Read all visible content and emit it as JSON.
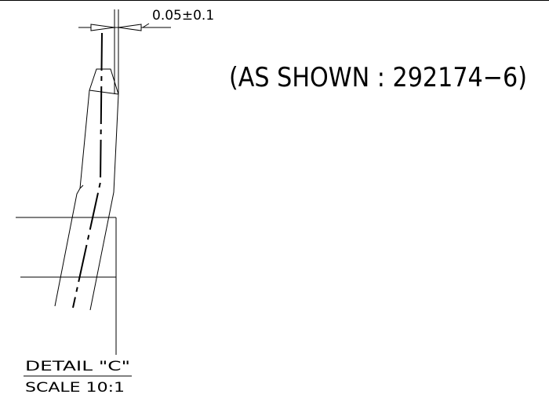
{
  "drawing": {
    "tolerance_label": "0.05±0.1",
    "part_note": "(AS SHOWN : 292174−6)",
    "detail_label": "DETAIL \"C\"",
    "scale_label": "SCALE 10:1"
  }
}
